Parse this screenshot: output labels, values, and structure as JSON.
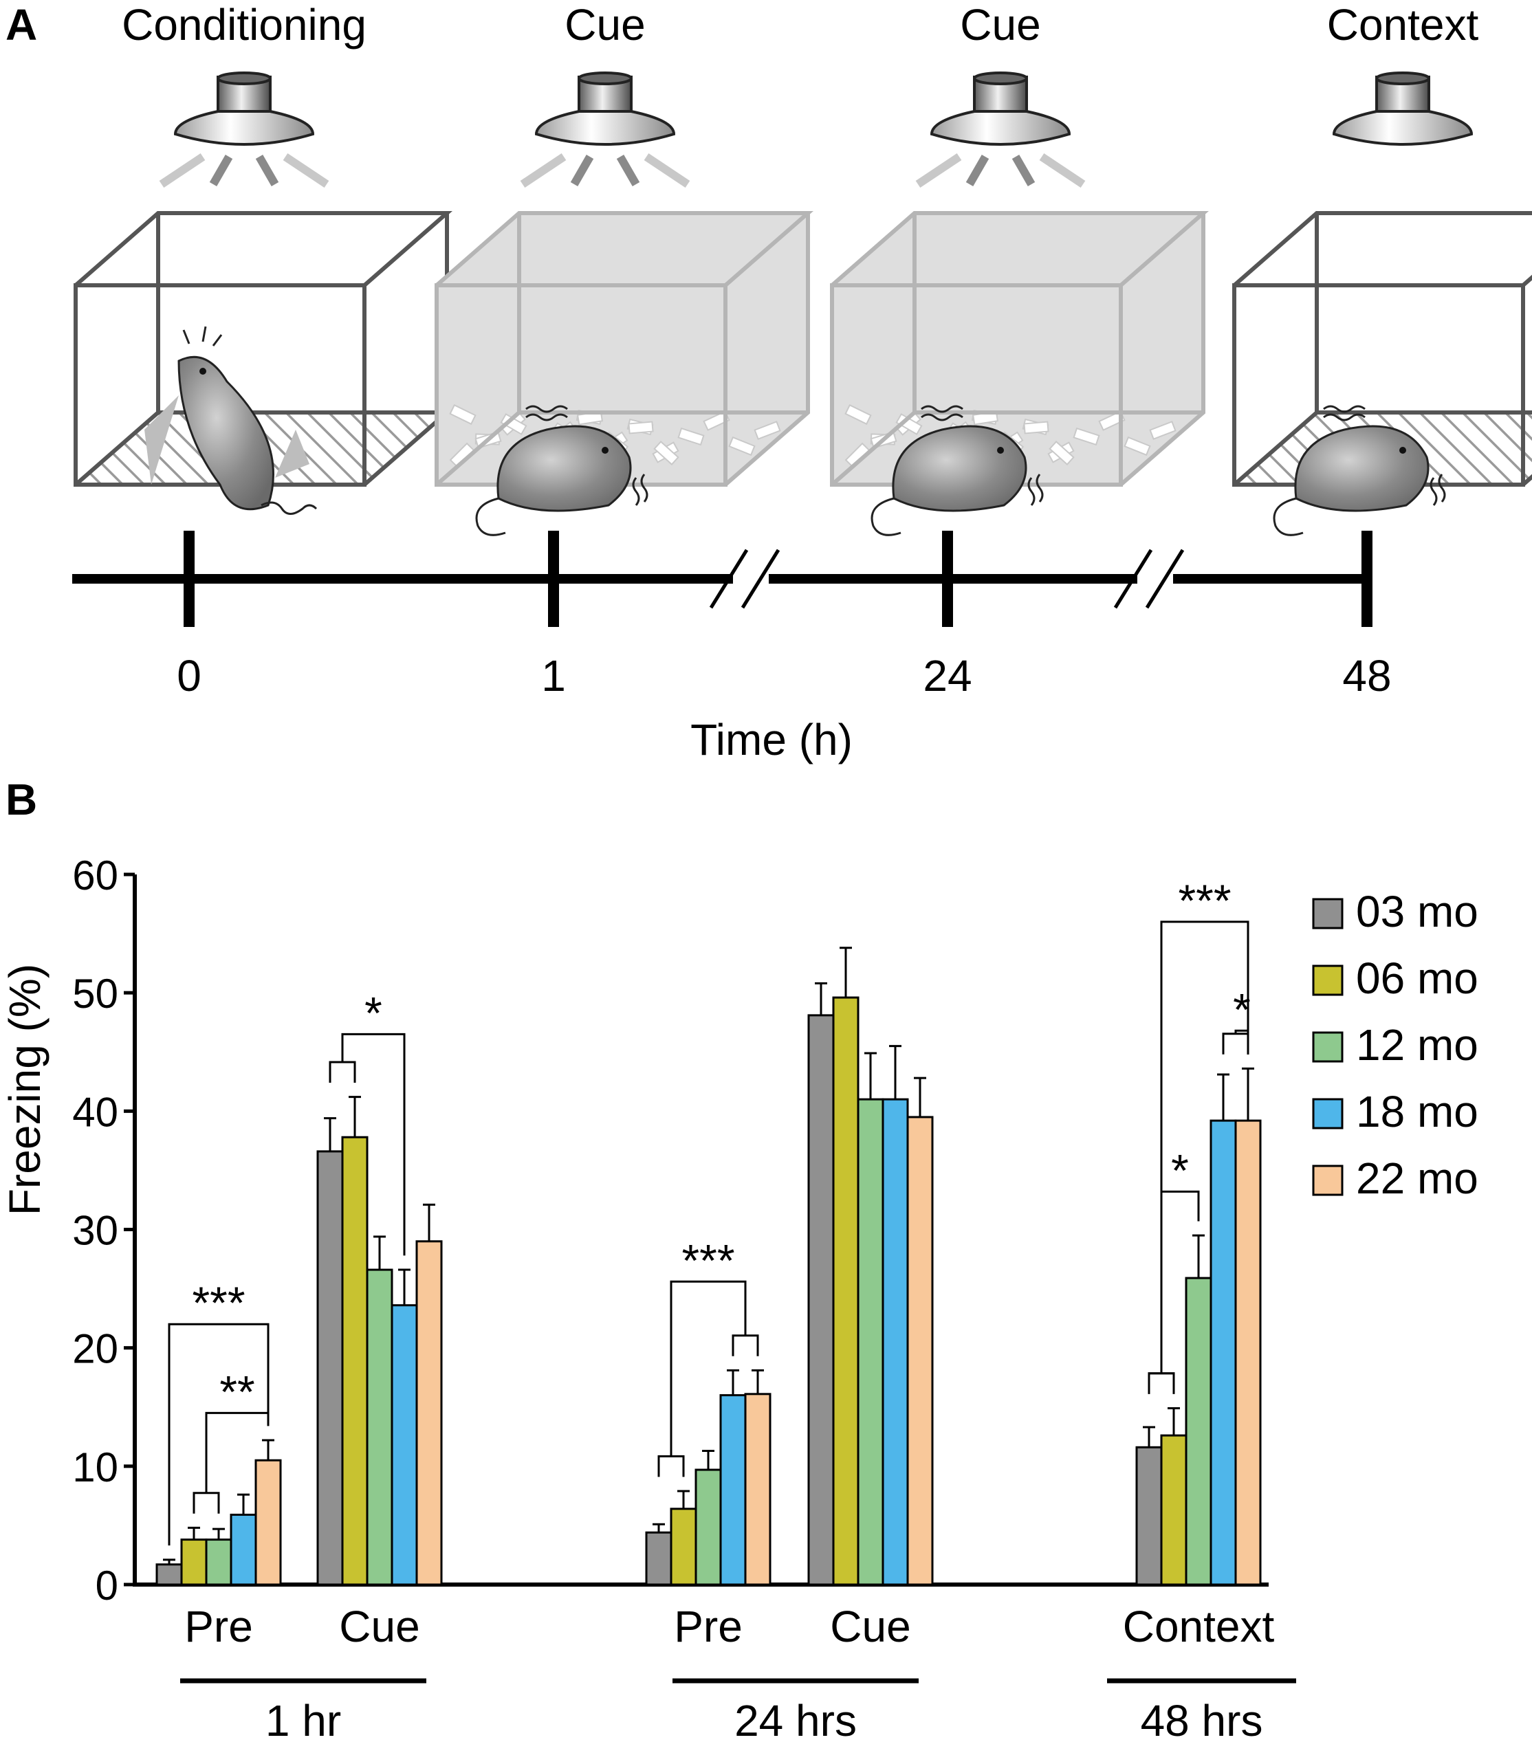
{
  "panelA": {
    "label": "A",
    "stages": [
      {
        "label": "Conditioning",
        "box": "plain",
        "mouse": "shocked",
        "light": "on"
      },
      {
        "label": "Cue",
        "box": "shaded",
        "mouse": "freezing",
        "light": "on"
      },
      {
        "label": "Cue",
        "box": "shaded",
        "mouse": "freezing",
        "light": "on"
      },
      {
        "label": "Context",
        "box": "plain",
        "mouse": "freezing",
        "light": "off"
      }
    ],
    "timeline": {
      "ticks": [
        "0",
        "1",
        "24",
        "48"
      ],
      "axis_label": "Time (h)"
    }
  },
  "panelB": {
    "label": "B"
  },
  "colors": {
    "03 mo": "#909090",
    "06 mo": "#c8c230",
    "12 mo": "#8ec98e",
    "18 mo": "#4fb6ea",
    "22 mo": "#f8c89a"
  },
  "chart_data": {
    "type": "bar",
    "ylabel": "Freezing (%)",
    "ylim": [
      0,
      60
    ],
    "yticks": [
      "0",
      "10",
      "20",
      "30",
      "40",
      "50",
      "60"
    ],
    "groups": [
      "Pre",
      "Cue",
      "Pre",
      "Cue",
      "Context"
    ],
    "sessions": [
      {
        "label": "1 hr",
        "groups": [
          0,
          1
        ]
      },
      {
        "label": "24 hrs",
        "groups": [
          2,
          3
        ]
      },
      {
        "label": "48 hrs",
        "groups": [
          4
        ]
      }
    ],
    "series": [
      {
        "name": "03 mo",
        "values": [
          1.7,
          36.6,
          4.4,
          48.1,
          11.6
        ],
        "errors": [
          0.4,
          2.8,
          0.7,
          2.7,
          1.7
        ]
      },
      {
        "name": "06 mo",
        "values": [
          3.8,
          37.8,
          6.4,
          49.6,
          12.6
        ],
        "errors": [
          1.0,
          3.4,
          1.5,
          4.2,
          2.3
        ]
      },
      {
        "name": "12 mo",
        "values": [
          3.8,
          26.6,
          9.7,
          41.0,
          25.9
        ],
        "errors": [
          0.9,
          2.8,
          1.6,
          3.9,
          3.6
        ]
      },
      {
        "name": "18 mo",
        "values": [
          5.9,
          23.6,
          16.0,
          41.0,
          39.2
        ],
        "errors": [
          1.7,
          3.0,
          2.1,
          4.5,
          3.9
        ]
      },
      {
        "name": "22 mo",
        "values": [
          10.5,
          29.0,
          16.1,
          39.5,
          39.2
        ],
        "errors": [
          1.7,
          3.1,
          2.0,
          3.3,
          4.4
        ]
      }
    ],
    "significance": [
      {
        "label": "***",
        "group": 0,
        "from": [
          0
        ],
        "to": [
          4
        ]
      },
      {
        "label": "**",
        "group": 0,
        "from": [
          1,
          2
        ],
        "to": [
          4
        ]
      },
      {
        "label": "*",
        "group": 1,
        "from": [
          0,
          1
        ],
        "to": [
          3
        ]
      },
      {
        "label": "***",
        "group": 2,
        "from": [
          0,
          1
        ],
        "to": [
          3,
          4
        ]
      },
      {
        "label": "***",
        "group": 4,
        "from": [
          0,
          1
        ],
        "to": [
          4
        ]
      },
      {
        "label": "*",
        "group": 4,
        "from": [
          3,
          4
        ],
        "to": [
          4
        ]
      },
      {
        "label": "*",
        "group": 4,
        "from": [
          0,
          1
        ],
        "to": [
          2
        ]
      }
    ],
    "legend": [
      "03 mo",
      "06 mo",
      "12 mo",
      "18 mo",
      "22 mo"
    ],
    "legend_position": "top-right"
  }
}
